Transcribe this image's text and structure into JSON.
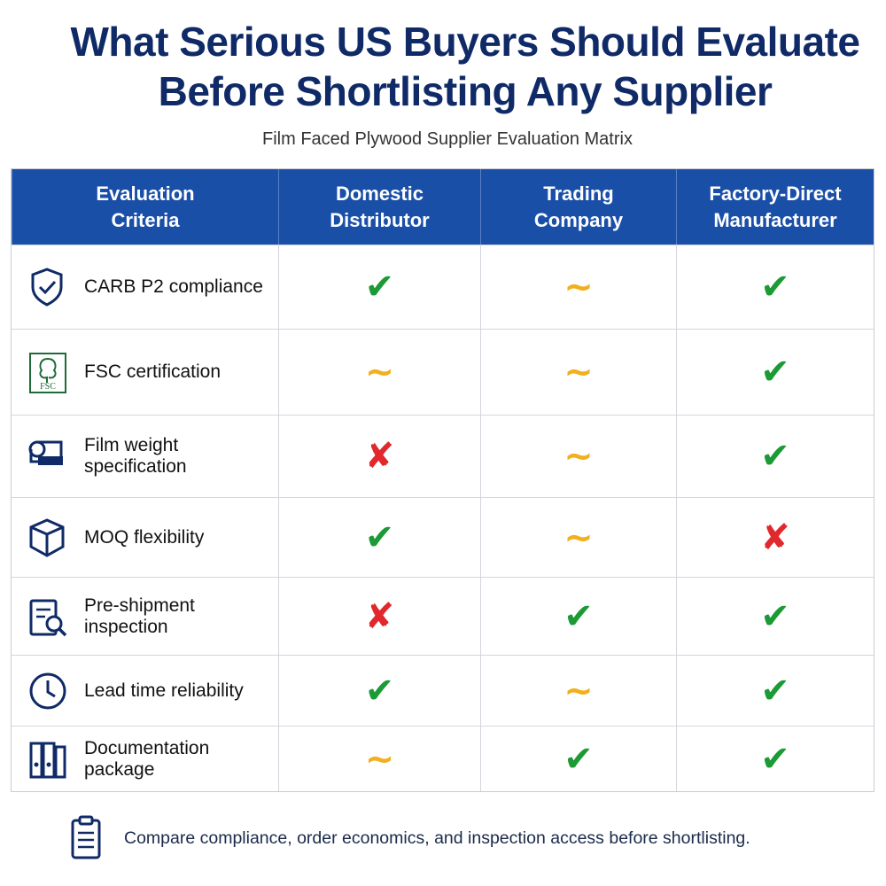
{
  "title_lines": [
    "What Serious US Buyers Should Evaluate",
    "Before Shortlisting Any Supplier"
  ],
  "subtitle": "Film Faced Plywood Supplier Evaluation Matrix",
  "table": {
    "columns": [
      "Evaluation Criteria",
      "Domestic Distributor",
      "Trading Company",
      "Factory-Direct Manufacturer"
    ],
    "rows": [
      [
        "CARB P2 compliance",
        "✔",
        "~",
        "✔"
      ],
      [
        "FSC certification",
        "~",
        "~",
        "✔"
      ],
      [
        "Film weight specification",
        "✘",
        "~",
        "✔"
      ],
      [
        "MOQ flexibility",
        "✔",
        "~",
        "✘"
      ],
      [
        "Pre-shipment inspection",
        "✘",
        "✔",
        "✔"
      ],
      [
        "Lead time reliability",
        "✔",
        "~",
        "✔"
      ],
      [
        "Documentation package",
        "~",
        "✔",
        "✔"
      ]
    ]
  },
  "fsc_label": "FSC",
  "footer": "Compare compliance, order economics, and inspection access before shortlisting."
}
